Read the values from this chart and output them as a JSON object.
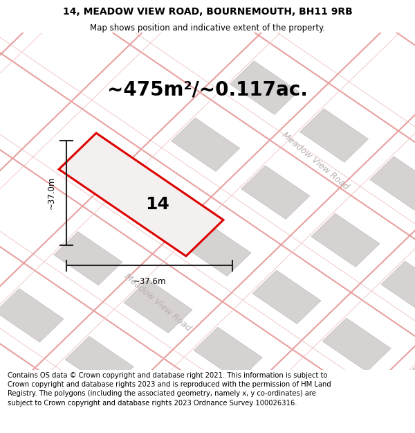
{
  "title_line1": "14, MEADOW VIEW ROAD, BOURNEMOUTH, BH11 9RB",
  "title_line2": "Map shows position and indicative extent of the property.",
  "area_label": "~475m²/~0.117ac.",
  "property_number": "14",
  "dim_height": "~37.0m",
  "dim_width": "~37.6m",
  "road_label_bottom": "Meadow View Road",
  "road_label_right": "Meadow View Road",
  "footer_text": "Contains OS data © Crown copyright and database right 2021. This information is subject to Crown copyright and database rights 2023 and is reproduced with the permission of HM Land Registry. The polygons (including the associated geometry, namely x, y co-ordinates) are subject to Crown copyright and database rights 2023 Ordnance Survey 100026316.",
  "map_bg": "#eeecec",
  "plot_color": "#dd0000",
  "plot_fill": "#f5f0f0",
  "building_fill": "#d4d0d0",
  "building_edge": "#c0bcbc",
  "road_line_color": "#e8a0a0",
  "road_line_color2": "#f0c0c0",
  "dim_line_color": "#222222",
  "title_fontsize": 10,
  "area_fontsize": 20,
  "prop_num_fontsize": 18,
  "footer_fontsize": 7.2,
  "road_label_color": "#b8b0b0",
  "road_label_fontsize": 9
}
